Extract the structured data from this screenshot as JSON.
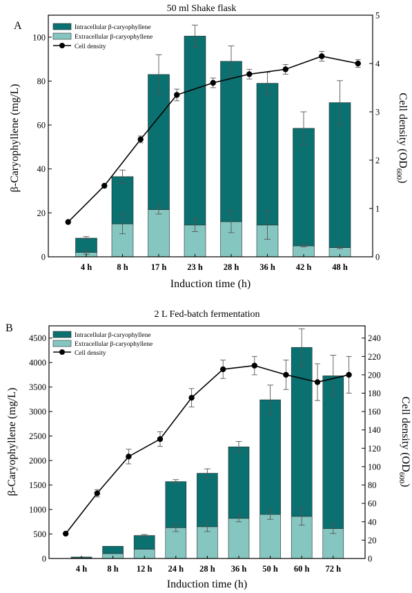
{
  "colors": {
    "intracellular": "#0a7070",
    "extracellular": "#86c6c0",
    "line": "#000000",
    "bar_edge": "#2a2a2a",
    "error": "#555555"
  },
  "chart_data": [
    {
      "type": "bar",
      "panel": "A",
      "title": "50 ml Shake flask",
      "xlabel": "Induction time (h)",
      "ylabel": "β-Caryophyllene (mg/L)",
      "y2label": "Cell density (OD",
      "y2label_sub": "600",
      "y2label_end": ")",
      "ylim": [
        0,
        110
      ],
      "y_ticks": [
        0,
        20,
        40,
        60,
        80,
        100
      ],
      "y2lim": [
        0,
        5
      ],
      "y2_ticks": [
        0,
        1,
        2,
        3,
        4,
        5
      ],
      "stacked": true,
      "legend_position": "top-left",
      "categories": [
        "4 h",
        "8 h",
        "17 h",
        "23 h",
        "28 h",
        "36 h",
        "42 h",
        "48 h"
      ],
      "series": [
        {
          "name": "Intracellular β-caryophyllene",
          "values": [
            6.5,
            21.5,
            61.5,
            86.0,
            73.0,
            64.5,
            53.5,
            66.0
          ],
          "total_error": [
            0.7,
            3.0,
            9.0,
            5.0,
            7.0,
            5.0,
            7.5,
            10.0
          ]
        },
        {
          "name": "Extracellular β-caryophyllene",
          "values": [
            2.0,
            15.0,
            21.5,
            14.5,
            16.0,
            14.5,
            5.0,
            4.2
          ],
          "error": [
            0.8,
            4.5,
            2.0,
            3.0,
            5.0,
            6.5,
            0.5,
            0.5
          ]
        }
      ],
      "line_series": {
        "name": "Cell density",
        "x_index": [
          -0.5,
          0.5,
          1.5,
          2.5,
          3.5,
          4.5,
          5.5,
          6.5,
          7.5
        ],
        "values": [
          0.72,
          1.47,
          2.43,
          3.35,
          3.6,
          3.78,
          3.88,
          4.15,
          4.0
        ],
        "error": [
          0,
          0,
          0.07,
          0.12,
          0.1,
          0.1,
          0.1,
          0.1,
          0.08
        ]
      }
    },
    {
      "type": "bar",
      "panel": "B",
      "title": "2 L Fed-batch fermentation",
      "xlabel": "Induction time (h)",
      "ylabel": "β-Caryophyllene (mg/L)",
      "y2label": "Cell density (OD",
      "y2label_sub": "600",
      "y2label_end": ")",
      "ylim": [
        0,
        4750
      ],
      "y_ticks": [
        0,
        500,
        1000,
        1500,
        2000,
        2500,
        3000,
        3500,
        4000,
        4500
      ],
      "y2lim": [
        0,
        253.3
      ],
      "y2_ticks": [
        0,
        20,
        40,
        60,
        80,
        100,
        120,
        140,
        160,
        180,
        200,
        220,
        240
      ],
      "stacked": true,
      "legend_position": "top-left",
      "categories": [
        "4 h",
        "8 h",
        "12 h",
        "24 h",
        "28 h",
        "36 h",
        "50 h",
        "60 h",
        "72 h"
      ],
      "series": [
        {
          "name": "Intracellular β-caryophyllene",
          "values": [
            20,
            150,
            280,
            940,
            1090,
            1460,
            2340,
            3450,
            3120
          ],
          "total_error": [
            0,
            0,
            20,
            40,
            90,
            110,
            300,
            380,
            420
          ]
        },
        {
          "name": "Extracellular β-caryophyllene",
          "values": [
            10,
            100,
            190,
            630,
            650,
            820,
            900,
            860,
            610
          ],
          "error": [
            0,
            0,
            0,
            80,
            100,
            70,
            100,
            180,
            100
          ]
        }
      ],
      "line_series": {
        "name": "Cell density",
        "x_index": [
          -0.5,
          0.5,
          1.5,
          2.5,
          3.5,
          4.5,
          5.5,
          6.5,
          7.5,
          8.5
        ],
        "values": [
          27,
          71,
          111,
          130,
          175,
          206,
          210,
          200,
          192,
          200
        ],
        "error": [
          0,
          4,
          8,
          8,
          10,
          10,
          10,
          16,
          20,
          20
        ]
      }
    }
  ]
}
